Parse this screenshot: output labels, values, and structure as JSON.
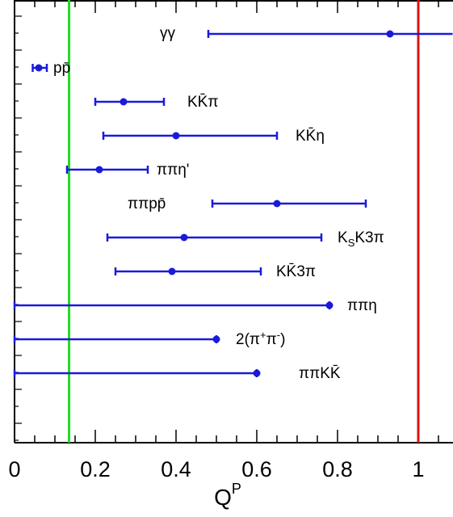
{
  "chart_data": {
    "type": "scatter",
    "title": "",
    "xlabel": "Q",
    "xlabel_superscript": "P",
    "ylabel": "",
    "xlim": [
      0,
      1.085
    ],
    "x_ticks": [
      0,
      0.2,
      0.4,
      0.6,
      0.8,
      1
    ],
    "x_tick_labels": [
      "0",
      "0.2",
      "0.4",
      "0.6",
      "0.8",
      "1"
    ],
    "grid": false,
    "vertical_lines": [
      {
        "x": 0.135,
        "color": "#22dd22"
      },
      {
        "x": 1.0,
        "color": "#dd1111"
      }
    ],
    "marker_color": "#1a1adb",
    "points": [
      {
        "label": "γγ",
        "x": 0.93,
        "xerr_low": 0.48,
        "xerr_high": 1.085
      },
      {
        "label": "pp̄",
        "x": 0.06,
        "xerr_low": 0.045,
        "xerr_high": 0.08
      },
      {
        "label": "KK̄π",
        "x": 0.27,
        "xerr_low": 0.2,
        "xerr_high": 0.37
      },
      {
        "label": "KK̄η",
        "x": 0.4,
        "xerr_low": 0.22,
        "xerr_high": 0.65
      },
      {
        "label": "ππη'",
        "x": 0.21,
        "xerr_low": 0.13,
        "xerr_high": 0.33
      },
      {
        "label": "ππpp̄",
        "x": 0.65,
        "xerr_low": 0.49,
        "xerr_high": 0.87
      },
      {
        "label": "KSK3π",
        "x": 0.42,
        "xerr_low": 0.23,
        "xerr_high": 0.76
      },
      {
        "label": "KK̄3π",
        "x": 0.39,
        "xerr_low": 0.25,
        "xerr_high": 0.61
      },
      {
        "label": "ππη",
        "x": 0.78,
        "xerr_low": 0.0,
        "xerr_high": 0.78
      },
      {
        "label": "2(π+π-)",
        "x": 0.5,
        "xerr_low": 0.0,
        "xerr_high": 0.5
      },
      {
        "label": "ππKK̄",
        "x": 0.6,
        "xerr_low": 0.0,
        "xerr_high": 0.6
      }
    ]
  }
}
